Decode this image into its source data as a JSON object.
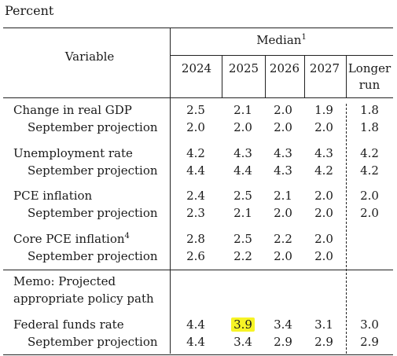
{
  "unit_label": "Percent",
  "header": {
    "variable": "Variable",
    "median": "Median",
    "median_note": "1",
    "years": [
      "2024",
      "2025",
      "2026",
      "2027"
    ],
    "longer_run_1": "Longer",
    "longer_run_2": "run"
  },
  "rows": {
    "gdp": {
      "label": "Change in real GDP",
      "values": [
        "2.5",
        "2.1",
        "2.0",
        "1.9",
        "1.8"
      ]
    },
    "gdp_sep": {
      "label": "September projection",
      "values": [
        "2.0",
        "2.0",
        "2.0",
        "2.0",
        "1.8"
      ]
    },
    "unemp": {
      "label": "Unemployment rate",
      "values": [
        "4.2",
        "4.3",
        "4.3",
        "4.3",
        "4.2"
      ]
    },
    "unemp_sep": {
      "label": "September projection",
      "values": [
        "4.4",
        "4.4",
        "4.3",
        "4.2",
        "4.2"
      ]
    },
    "pce": {
      "label": "PCE inflation",
      "values": [
        "2.4",
        "2.5",
        "2.1",
        "2.0",
        "2.0"
      ]
    },
    "pce_sep": {
      "label": "September projection",
      "values": [
        "2.3",
        "2.1",
        "2.0",
        "2.0",
        "2.0"
      ]
    },
    "core": {
      "label": "Core PCE inflation",
      "note": "4",
      "values": [
        "2.8",
        "2.5",
        "2.2",
        "2.0"
      ]
    },
    "core_sep": {
      "label": "September projection",
      "values": [
        "2.6",
        "2.2",
        "2.0",
        "2.0"
      ]
    },
    "memo_1": "Memo: Projected",
    "memo_2": "appropriate policy path",
    "ffr": {
      "label": "Federal funds rate",
      "values": [
        "4.4",
        "3.9",
        "3.4",
        "3.1",
        "3.0"
      ]
    },
    "ffr_sep": {
      "label": "September projection",
      "values": [
        "4.4",
        "3.4",
        "2.9",
        "2.9",
        "2.9"
      ]
    }
  },
  "highlight_color": "#f7f426"
}
